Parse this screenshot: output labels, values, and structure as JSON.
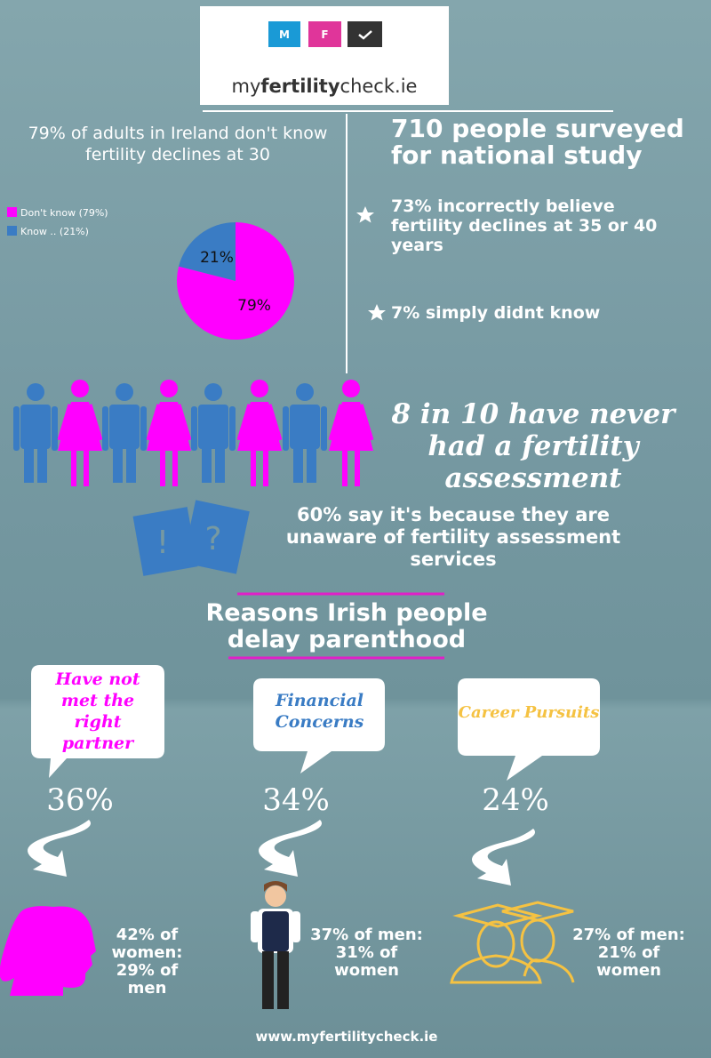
{
  "logo": {
    "badges": [
      "M",
      "F"
    ],
    "parts": [
      "my",
      "fertility",
      "check",
      ".ie"
    ]
  },
  "chart_data": {
    "type": "pie",
    "title": "79% of adults in Ireland don't know fertility declines at 30",
    "categories": [
      "Don't know (79%)",
      "Know .. (21%)"
    ],
    "values": [
      79,
      21
    ],
    "value_labels": [
      "79%",
      "21%"
    ],
    "colors": [
      "#ff00ff",
      "#3a7cc4"
    ],
    "legend": "left"
  },
  "survey": {
    "heading": "710 people surveyed for national study",
    "points": [
      "73% incorrectly believe fertility declines at 35 or 40 years",
      "7% simply didnt know"
    ]
  },
  "assessment": {
    "headline": "8 in 10 have never had a fertility assessment",
    "icon_marks": [
      "!",
      "?"
    ],
    "reason": "60% say it's because they are unaware of fertility assessment services"
  },
  "reasons": {
    "title": "Reasons Irish people delay parenthood",
    "items": [
      {
        "label": "Have not met the right partner",
        "percent": "36%",
        "detail": "42% of women: 29% of men"
      },
      {
        "label": "Financial Concerns",
        "percent": "34%",
        "detail": "37% of men: 31% of women"
      },
      {
        "label": "Career Pursuits",
        "percent": "24%",
        "detail": "27% of men: 21% of women"
      }
    ]
  },
  "footer": "www.myfertilitycheck.ie"
}
